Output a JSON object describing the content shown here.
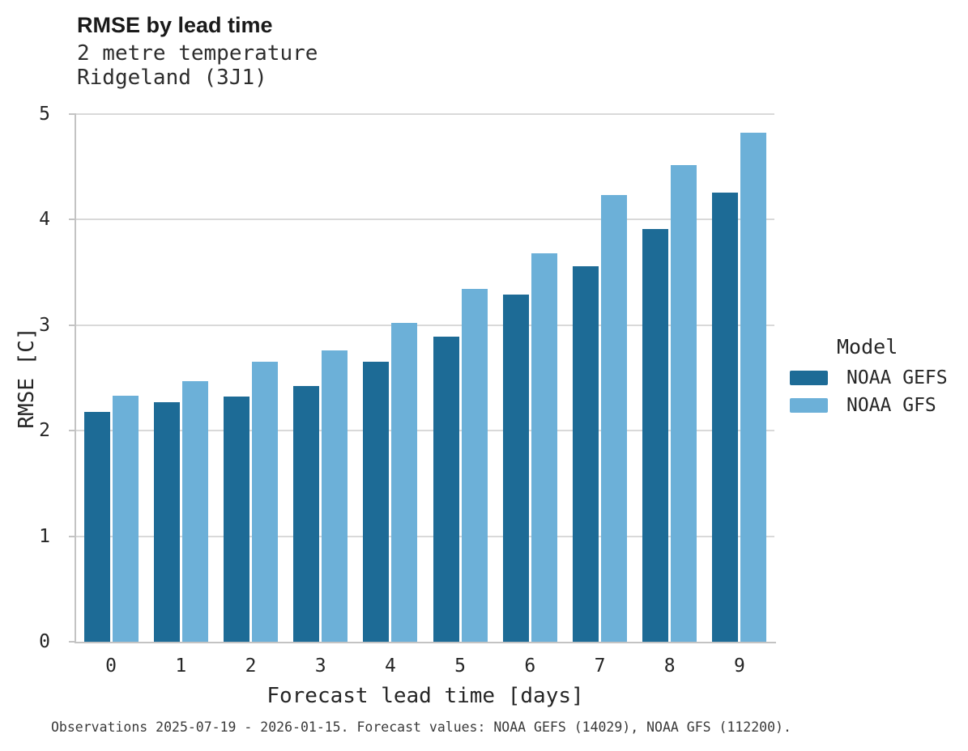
{
  "header": {
    "title": "RMSE by lead time",
    "subtitle_line1": "2 metre temperature",
    "subtitle_line2": "Ridgeland (3J1)"
  },
  "legend": {
    "title": "Model",
    "items": [
      {
        "label": "NOAA GEFS",
        "color": "#1d6b96"
      },
      {
        "label": "NOAA GFS",
        "color": "#6cb0d8"
      }
    ]
  },
  "footer": {
    "text": "Observations 2025-07-19 - 2026-01-15. Forecast values: NOAA GEFS (14029), NOAA GFS (112200)."
  },
  "chart_data": {
    "type": "bar",
    "title": "RMSE by lead time",
    "subtitle": [
      "2 metre temperature",
      "Ridgeland (3J1)"
    ],
    "categories": [
      "0",
      "1",
      "2",
      "3",
      "4",
      "5",
      "6",
      "7",
      "8",
      "9"
    ],
    "series": [
      {
        "name": "NOAA GEFS",
        "color": "#1d6b96",
        "values": [
          2.18,
          2.27,
          2.32,
          2.42,
          2.65,
          2.89,
          3.29,
          3.56,
          3.91,
          4.26
        ]
      },
      {
        "name": "NOAA GFS",
        "color": "#6cb0d8",
        "values": [
          2.33,
          2.47,
          2.65,
          2.76,
          3.02,
          3.34,
          3.68,
          4.23,
          4.52,
          4.82
        ]
      }
    ],
    "xlabel": "Forecast lead time [days]",
    "ylabel": "RMSE [C]",
    "ylim": [
      0,
      5
    ],
    "yticks": [
      0,
      1,
      2,
      3,
      4,
      5
    ],
    "grid": true,
    "legend_title": "Model",
    "legend_position": "right",
    "grid_color": "#d9d9d9",
    "spine_color": "#c3c3c3"
  }
}
